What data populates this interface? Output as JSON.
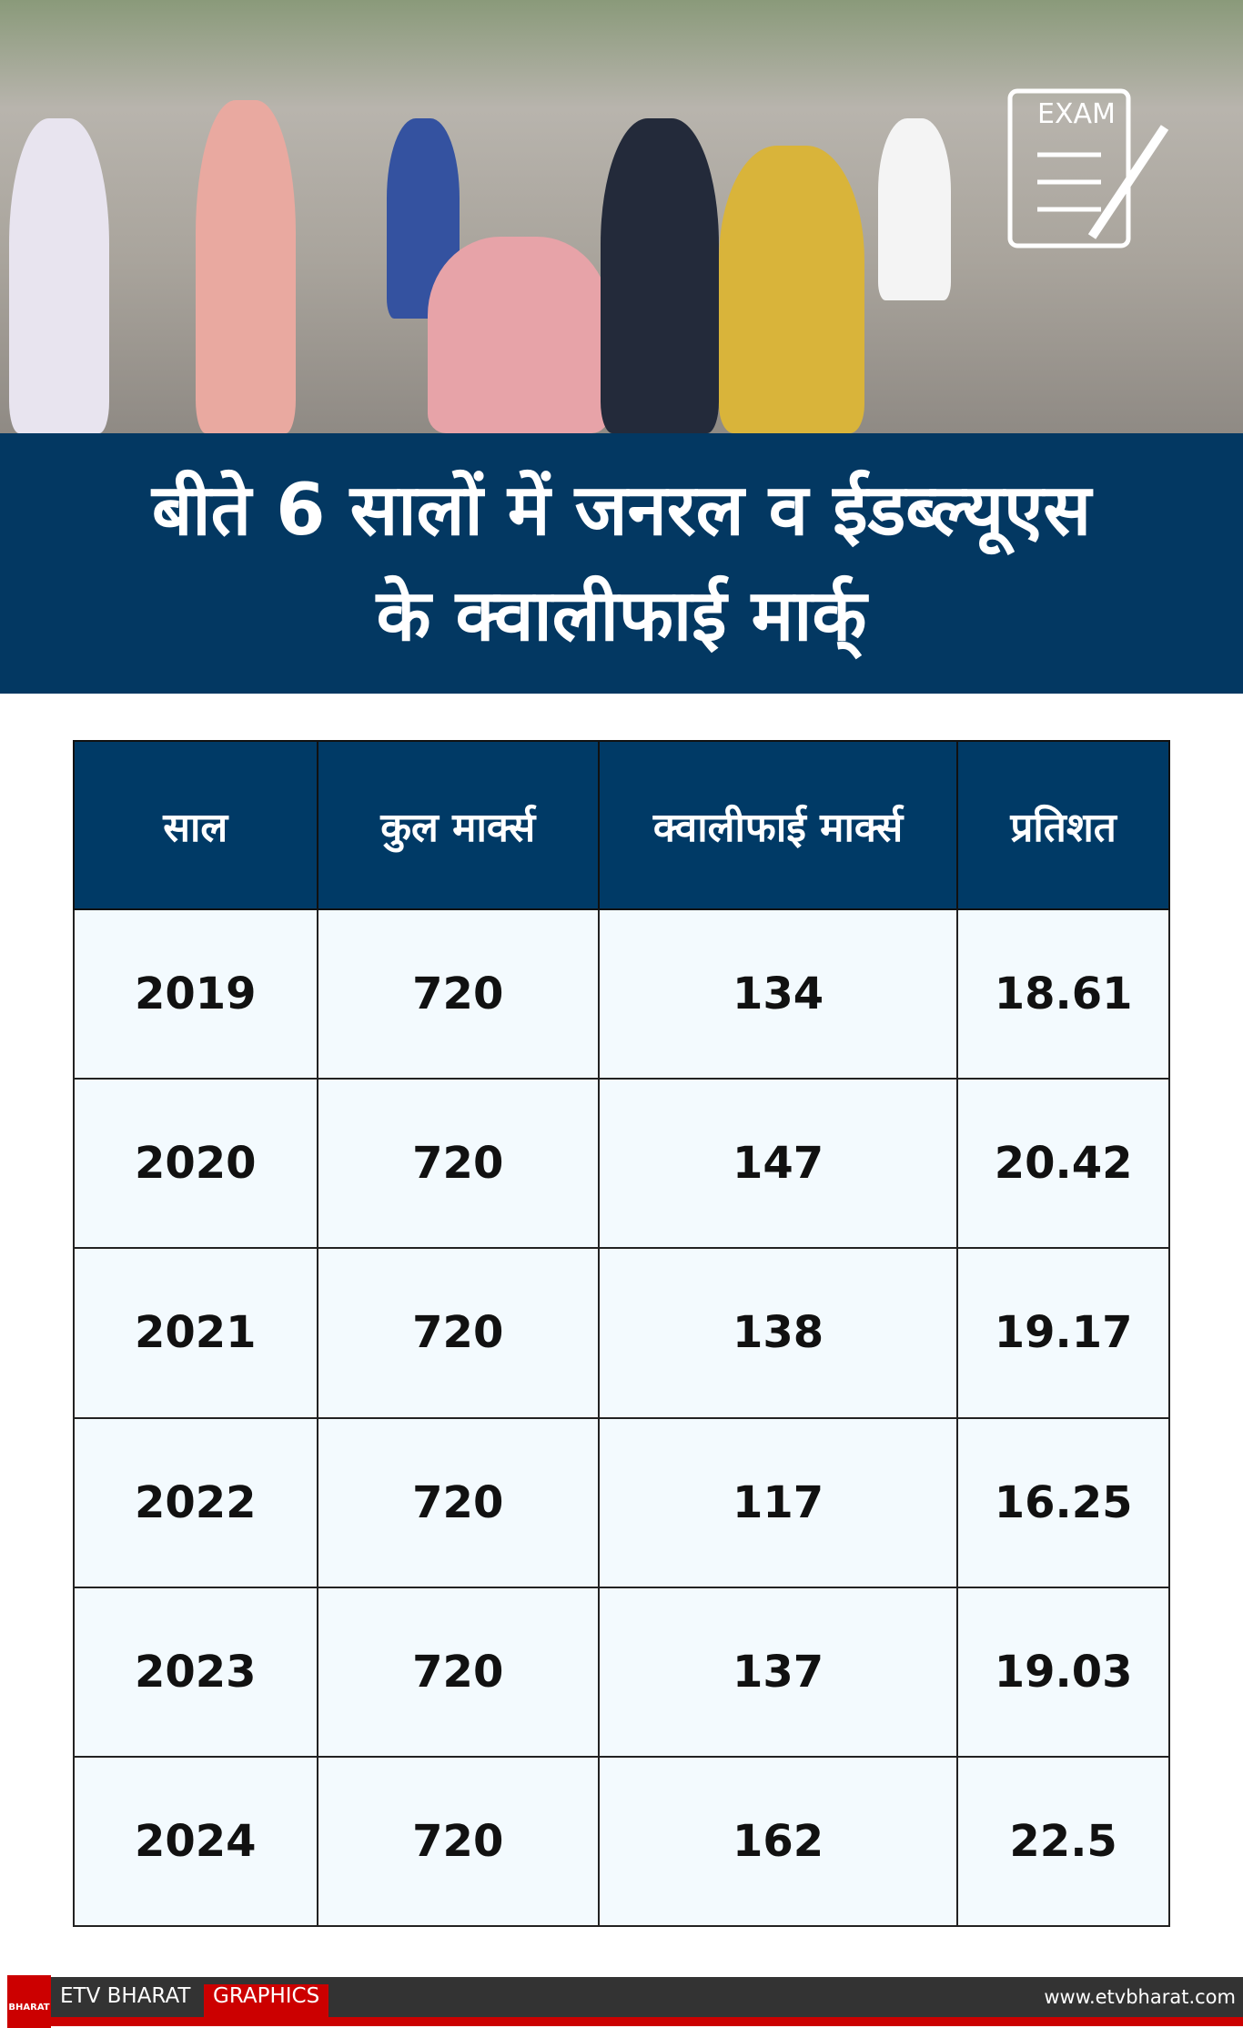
{
  "banner": {
    "line1": "बीते 6 सालों में जनरल व ईडब्ल्यूएस",
    "line2": "के क्वालीफाई मार्क्"
  },
  "photo": {
    "exam_label": "EXAM"
  },
  "table": {
    "headers": [
      "साल",
      "कुल मार्क्स",
      "क्वालीफाई मार्क्स",
      "प्रतिशत"
    ],
    "rows": [
      [
        "2019",
        "720",
        "134",
        "18.61"
      ],
      [
        "2020",
        "720",
        "147",
        "20.42"
      ],
      [
        "2021",
        "720",
        "138",
        "19.17"
      ],
      [
        "2022",
        "720",
        "117",
        "16.25"
      ],
      [
        "2023",
        "720",
        "137",
        "19.03"
      ],
      [
        "2024",
        "720",
        "162",
        "22.5"
      ]
    ]
  },
  "footer": {
    "logo_text": "BHARAT",
    "brand": "ETV BHARAT",
    "graphics": "GRAPHICS",
    "url": "www.etvbharat.com"
  },
  "colors": {
    "banner": "#033862",
    "header": "#003a66",
    "cell": "#f3fafe",
    "accent": "#cc0000"
  }
}
